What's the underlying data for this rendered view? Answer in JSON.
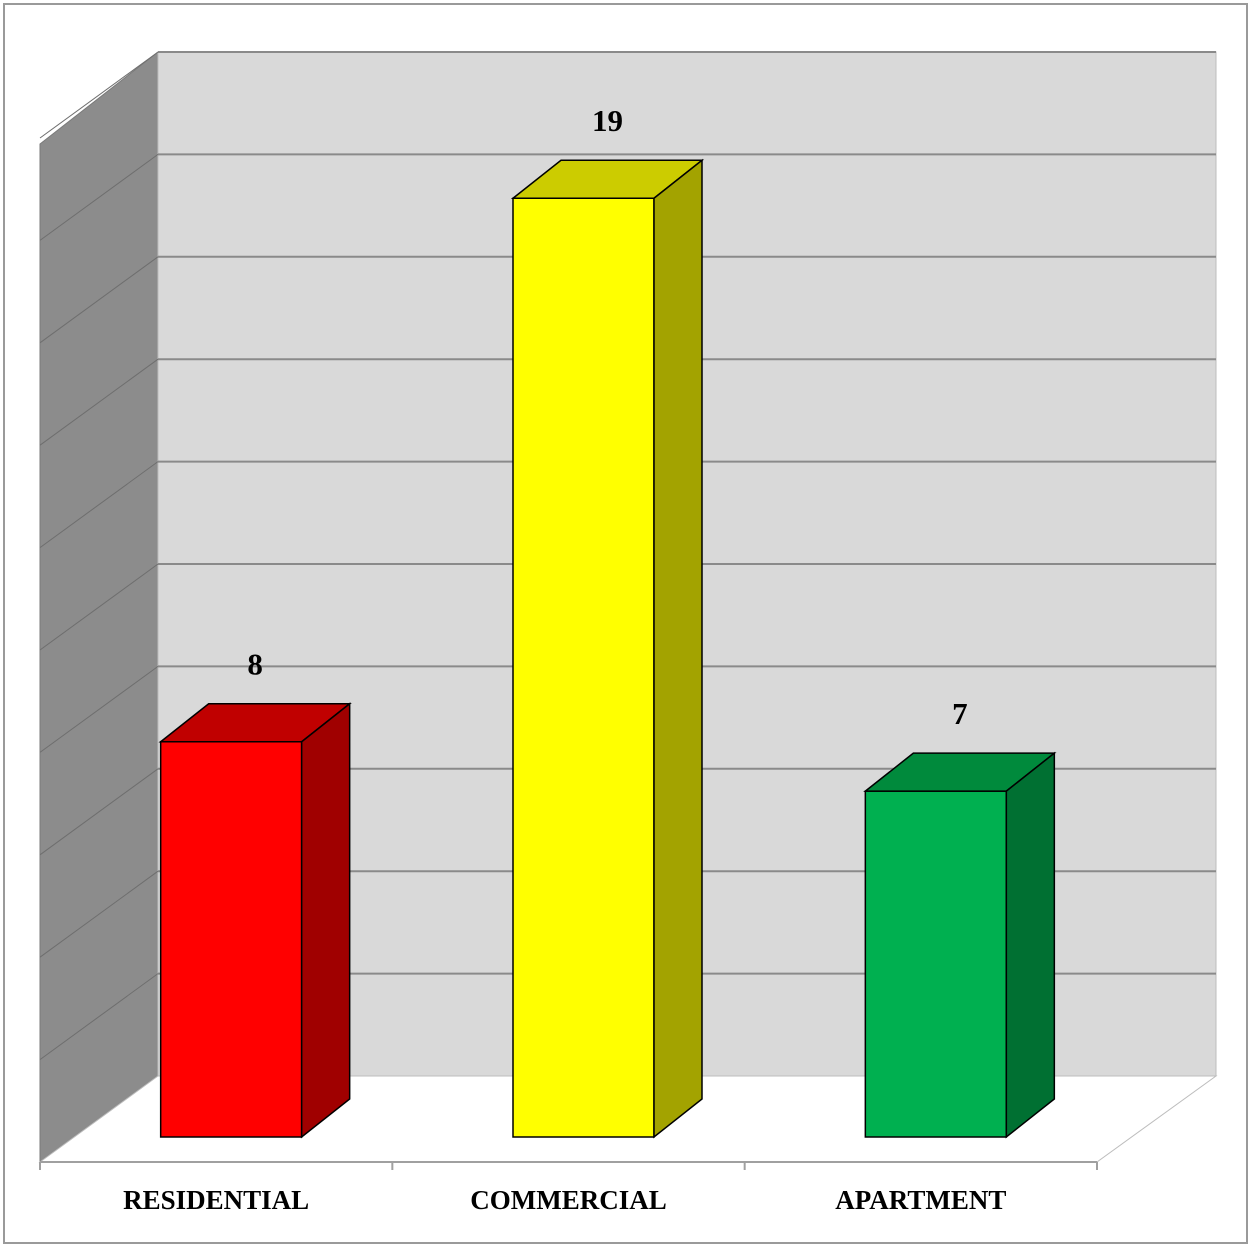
{
  "chart_data": {
    "type": "bar",
    "style": "3d-column",
    "categories": [
      "RESIDENTIAL",
      "COMMERCIAL",
      "APARTMENT"
    ],
    "values": [
      8,
      19,
      7
    ],
    "ylim": [
      0,
      20
    ],
    "grid": true,
    "legend": "none",
    "colors": {
      "RESIDENTIAL": {
        "front": "#ff0000",
        "top": "#c00000",
        "side": "#a00000"
      },
      "COMMERCIAL": {
        "front": "#ffff00",
        "top": "#cccc00",
        "side": "#a3a300"
      },
      "APARTMENT": {
        "front": "#00b050",
        "top": "#008a3c",
        "side": "#007032"
      }
    },
    "wall_colors": {
      "back": "#d9d9d9",
      "side": "#8c8c8c",
      "floor": "#ffffff",
      "gridline": "#8a8a8a"
    }
  }
}
